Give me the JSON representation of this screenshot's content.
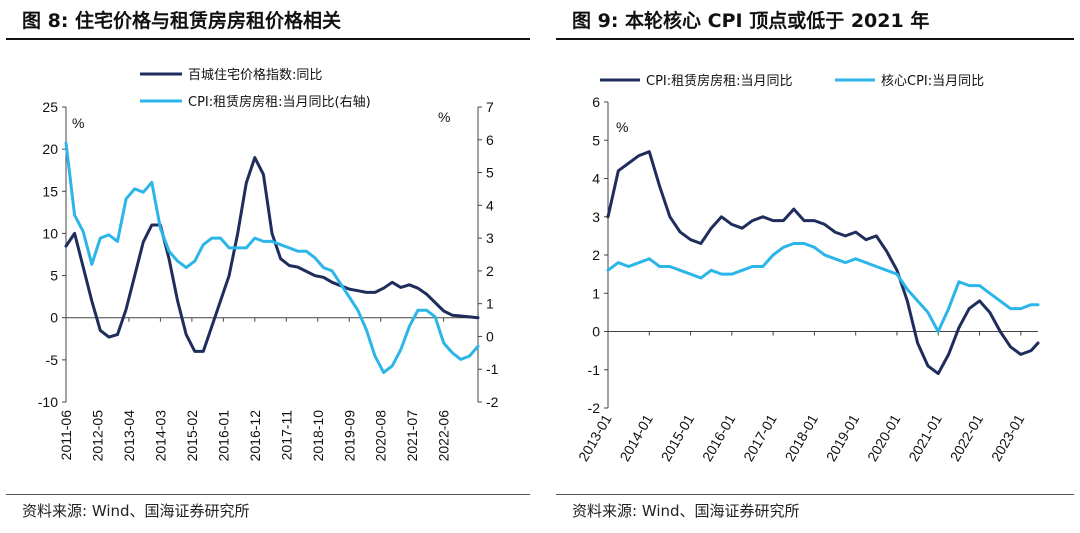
{
  "colors": {
    "dark": "#1f2d5c",
    "light": "#2bb5e8"
  },
  "charts": {
    "left": {
      "title": "图 8:  住宅价格与租赁房房租价格相关",
      "source": "资料来源:  Wind、国海证券研究所"
    },
    "right": {
      "title": "图 9:  本轮核心 CPI 顶点或低于 2021 年",
      "source": "资料来源:  Wind、国海证券研究所"
    }
  },
  "chart_data": [
    {
      "type": "line",
      "title": "图 8:  住宅价格与租赁房房租价格相关",
      "ylabel_left": "%",
      "ylabel_right": "%",
      "ylim": [
        -10,
        25
      ],
      "yticks": [
        -10,
        -5,
        0,
        5,
        10,
        15,
        20,
        25
      ],
      "y2lim": [
        -2,
        7
      ],
      "y2ticks": [
        -2,
        -1,
        0,
        1,
        2,
        3,
        4,
        5,
        6,
        7
      ],
      "xlim": [
        "2011-06",
        "2023-06"
      ],
      "xticks": [
        "2011-06",
        "2012-05",
        "2013-04",
        "2014-03",
        "2015-02",
        "2016-01",
        "2016-12",
        "2017-11",
        "2018-10",
        "2019-09",
        "2020-08",
        "2021-07",
        "2022-06"
      ],
      "legend": "top-center",
      "series": [
        {
          "name": "百城住宅价格指数:同比",
          "axis": "left",
          "color": "#1f2d5c",
          "x": [
            "2011-06",
            "2011-09",
            "2011-12",
            "2012-03",
            "2012-06",
            "2012-09",
            "2012-12",
            "2013-03",
            "2013-06",
            "2013-09",
            "2013-12",
            "2014-03",
            "2014-06",
            "2014-09",
            "2014-12",
            "2015-03",
            "2015-06",
            "2015-09",
            "2015-12",
            "2016-03",
            "2016-06",
            "2016-09",
            "2016-12",
            "2017-03",
            "2017-06",
            "2017-09",
            "2017-12",
            "2018-03",
            "2018-06",
            "2018-09",
            "2018-12",
            "2019-03",
            "2019-06",
            "2019-09",
            "2019-12",
            "2020-03",
            "2020-06",
            "2020-09",
            "2020-12",
            "2021-03",
            "2021-06",
            "2021-09",
            "2021-12",
            "2022-03",
            "2022-06",
            "2022-09",
            "2022-12",
            "2023-03",
            "2023-06"
          ],
          "values": [
            8.5,
            10.0,
            6.0,
            2.0,
            -1.5,
            -2.3,
            -2.0,
            1.0,
            5.0,
            9.0,
            11.0,
            11.0,
            7.0,
            2.0,
            -2.0,
            -4.0,
            -4.0,
            -1.0,
            2.0,
            5.0,
            10.0,
            16.0,
            19.0,
            17.0,
            10.0,
            7.0,
            6.2,
            6.0,
            5.5,
            5.0,
            4.8,
            4.2,
            3.8,
            3.4,
            3.2,
            3.0,
            3.0,
            3.5,
            4.2,
            3.6,
            3.9,
            3.5,
            2.8,
            1.8,
            0.8,
            0.3,
            0.2,
            0.1,
            0.0
          ]
        },
        {
          "name": "CPI:租赁房房租:当月同比(右轴)",
          "axis": "right",
          "color": "#2bb5e8",
          "x": [
            "2011-06",
            "2011-09",
            "2011-12",
            "2012-03",
            "2012-06",
            "2012-09",
            "2012-12",
            "2013-03",
            "2013-06",
            "2013-09",
            "2013-12",
            "2014-03",
            "2014-06",
            "2014-09",
            "2014-12",
            "2015-03",
            "2015-06",
            "2015-09",
            "2015-12",
            "2016-03",
            "2016-06",
            "2016-09",
            "2016-12",
            "2017-03",
            "2017-06",
            "2017-09",
            "2017-12",
            "2018-03",
            "2018-06",
            "2018-09",
            "2018-12",
            "2019-03",
            "2019-06",
            "2019-09",
            "2019-12",
            "2020-03",
            "2020-06",
            "2020-09",
            "2020-12",
            "2021-03",
            "2021-06",
            "2021-09",
            "2021-12",
            "2022-03",
            "2022-06",
            "2022-09",
            "2022-12",
            "2023-03",
            "2023-06"
          ],
          "values": [
            5.9,
            3.7,
            3.2,
            2.2,
            3.0,
            3.1,
            2.9,
            4.2,
            4.5,
            4.4,
            4.7,
            3.3,
            2.6,
            2.3,
            2.1,
            2.3,
            2.8,
            3.0,
            3.0,
            2.7,
            2.7,
            2.7,
            3.0,
            2.9,
            2.9,
            2.8,
            2.7,
            2.6,
            2.6,
            2.4,
            2.1,
            2.0,
            1.6,
            1.2,
            0.8,
            0.2,
            -0.6,
            -1.1,
            -0.9,
            -0.4,
            0.3,
            0.8,
            0.8,
            0.6,
            -0.2,
            -0.5,
            -0.7,
            -0.6,
            -0.3
          ]
        }
      ]
    },
    {
      "type": "line",
      "title": "图 9:  本轮核心 CPI 顶点或低于 2021 年",
      "ylabel": "%",
      "ylim": [
        -2,
        6
      ],
      "yticks": [
        -2,
        -1,
        0,
        1,
        2,
        3,
        4,
        5,
        6
      ],
      "xlim": [
        "2013-01",
        "2023-06"
      ],
      "xticks": [
        "2013-01",
        "2014-01",
        "2015-01",
        "2016-01",
        "2017-01",
        "2018-01",
        "2019-01",
        "2020-01",
        "2021-01",
        "2022-01",
        "2023-01"
      ],
      "legend": "top",
      "series": [
        {
          "name": "CPI:租赁房房租:当月同比",
          "color": "#1f2d5c",
          "x": [
            "2013-01",
            "2013-04",
            "2013-07",
            "2013-10",
            "2014-01",
            "2014-04",
            "2014-07",
            "2014-10",
            "2015-01",
            "2015-04",
            "2015-07",
            "2015-10",
            "2016-01",
            "2016-04",
            "2016-07",
            "2016-10",
            "2017-01",
            "2017-04",
            "2017-07",
            "2017-10",
            "2018-01",
            "2018-04",
            "2018-07",
            "2018-10",
            "2019-01",
            "2019-04",
            "2019-07",
            "2019-10",
            "2020-01",
            "2020-04",
            "2020-07",
            "2020-10",
            "2021-01",
            "2021-04",
            "2021-07",
            "2021-10",
            "2022-01",
            "2022-04",
            "2022-07",
            "2022-10",
            "2023-01",
            "2023-04",
            "2023-06"
          ],
          "values": [
            3.0,
            4.2,
            4.4,
            4.6,
            4.7,
            3.8,
            3.0,
            2.6,
            2.4,
            2.3,
            2.7,
            3.0,
            2.8,
            2.7,
            2.9,
            3.0,
            2.9,
            2.9,
            3.2,
            2.9,
            2.9,
            2.8,
            2.6,
            2.5,
            2.6,
            2.4,
            2.5,
            2.1,
            1.6,
            0.8,
            -0.3,
            -0.9,
            -1.1,
            -0.6,
            0.1,
            0.6,
            0.8,
            0.5,
            0.0,
            -0.4,
            -0.6,
            -0.5,
            -0.3
          ]
        },
        {
          "name": "核心CPI:当月同比",
          "color": "#2bb5e8",
          "x": [
            "2013-01",
            "2013-04",
            "2013-07",
            "2013-10",
            "2014-01",
            "2014-04",
            "2014-07",
            "2014-10",
            "2015-01",
            "2015-04",
            "2015-07",
            "2015-10",
            "2016-01",
            "2016-04",
            "2016-07",
            "2016-10",
            "2017-01",
            "2017-04",
            "2017-07",
            "2017-10",
            "2018-01",
            "2018-04",
            "2018-07",
            "2018-10",
            "2019-01",
            "2019-04",
            "2019-07",
            "2019-10",
            "2020-01",
            "2020-04",
            "2020-07",
            "2020-10",
            "2021-01",
            "2021-04",
            "2021-07",
            "2021-10",
            "2022-01",
            "2022-04",
            "2022-07",
            "2022-10",
            "2023-01",
            "2023-04",
            "2023-06"
          ],
          "values": [
            1.6,
            1.8,
            1.7,
            1.8,
            1.9,
            1.7,
            1.7,
            1.6,
            1.5,
            1.4,
            1.6,
            1.5,
            1.5,
            1.6,
            1.7,
            1.7,
            2.0,
            2.2,
            2.3,
            2.3,
            2.2,
            2.0,
            1.9,
            1.8,
            1.9,
            1.8,
            1.7,
            1.6,
            1.5,
            1.1,
            0.8,
            0.5,
            0.0,
            0.6,
            1.3,
            1.2,
            1.2,
            1.0,
            0.8,
            0.6,
            0.6,
            0.7,
            0.7
          ]
        }
      ]
    }
  ]
}
